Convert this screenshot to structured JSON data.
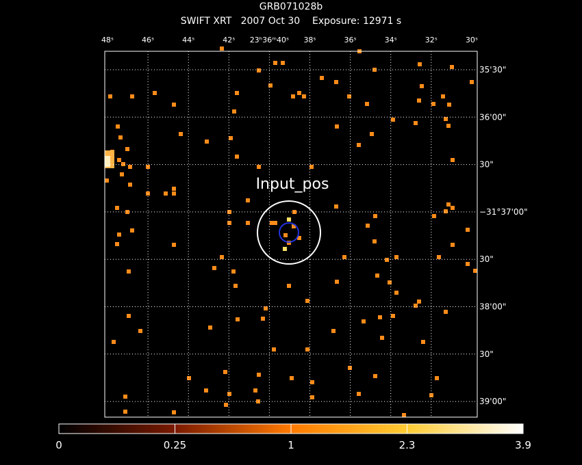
{
  "header": {
    "title": "GRB071028b",
    "subtitle": "SWIFT XRT   2007 Oct 30    Exposure: 12971 s"
  },
  "ra_labels": [
    "48ˢ",
    "46ˢ",
    "44ˢ",
    "42ˢ",
    "23ʰ36ᵐ40ˢ",
    "38ˢ",
    "36ˢ",
    "34ˢ",
    "32ˢ",
    "30ˢ"
  ],
  "dec_labels": [
    "35'30\"",
    "36'00\"",
    "30\"",
    "−31°37'00\"",
    "30\"",
    "38'00\"",
    "30\"",
    "39'00\""
  ],
  "source_label": "Input_pos",
  "colorbar": {
    "ticks": [
      0,
      0.25,
      1,
      2.3,
      3.9
    ]
  }
}
